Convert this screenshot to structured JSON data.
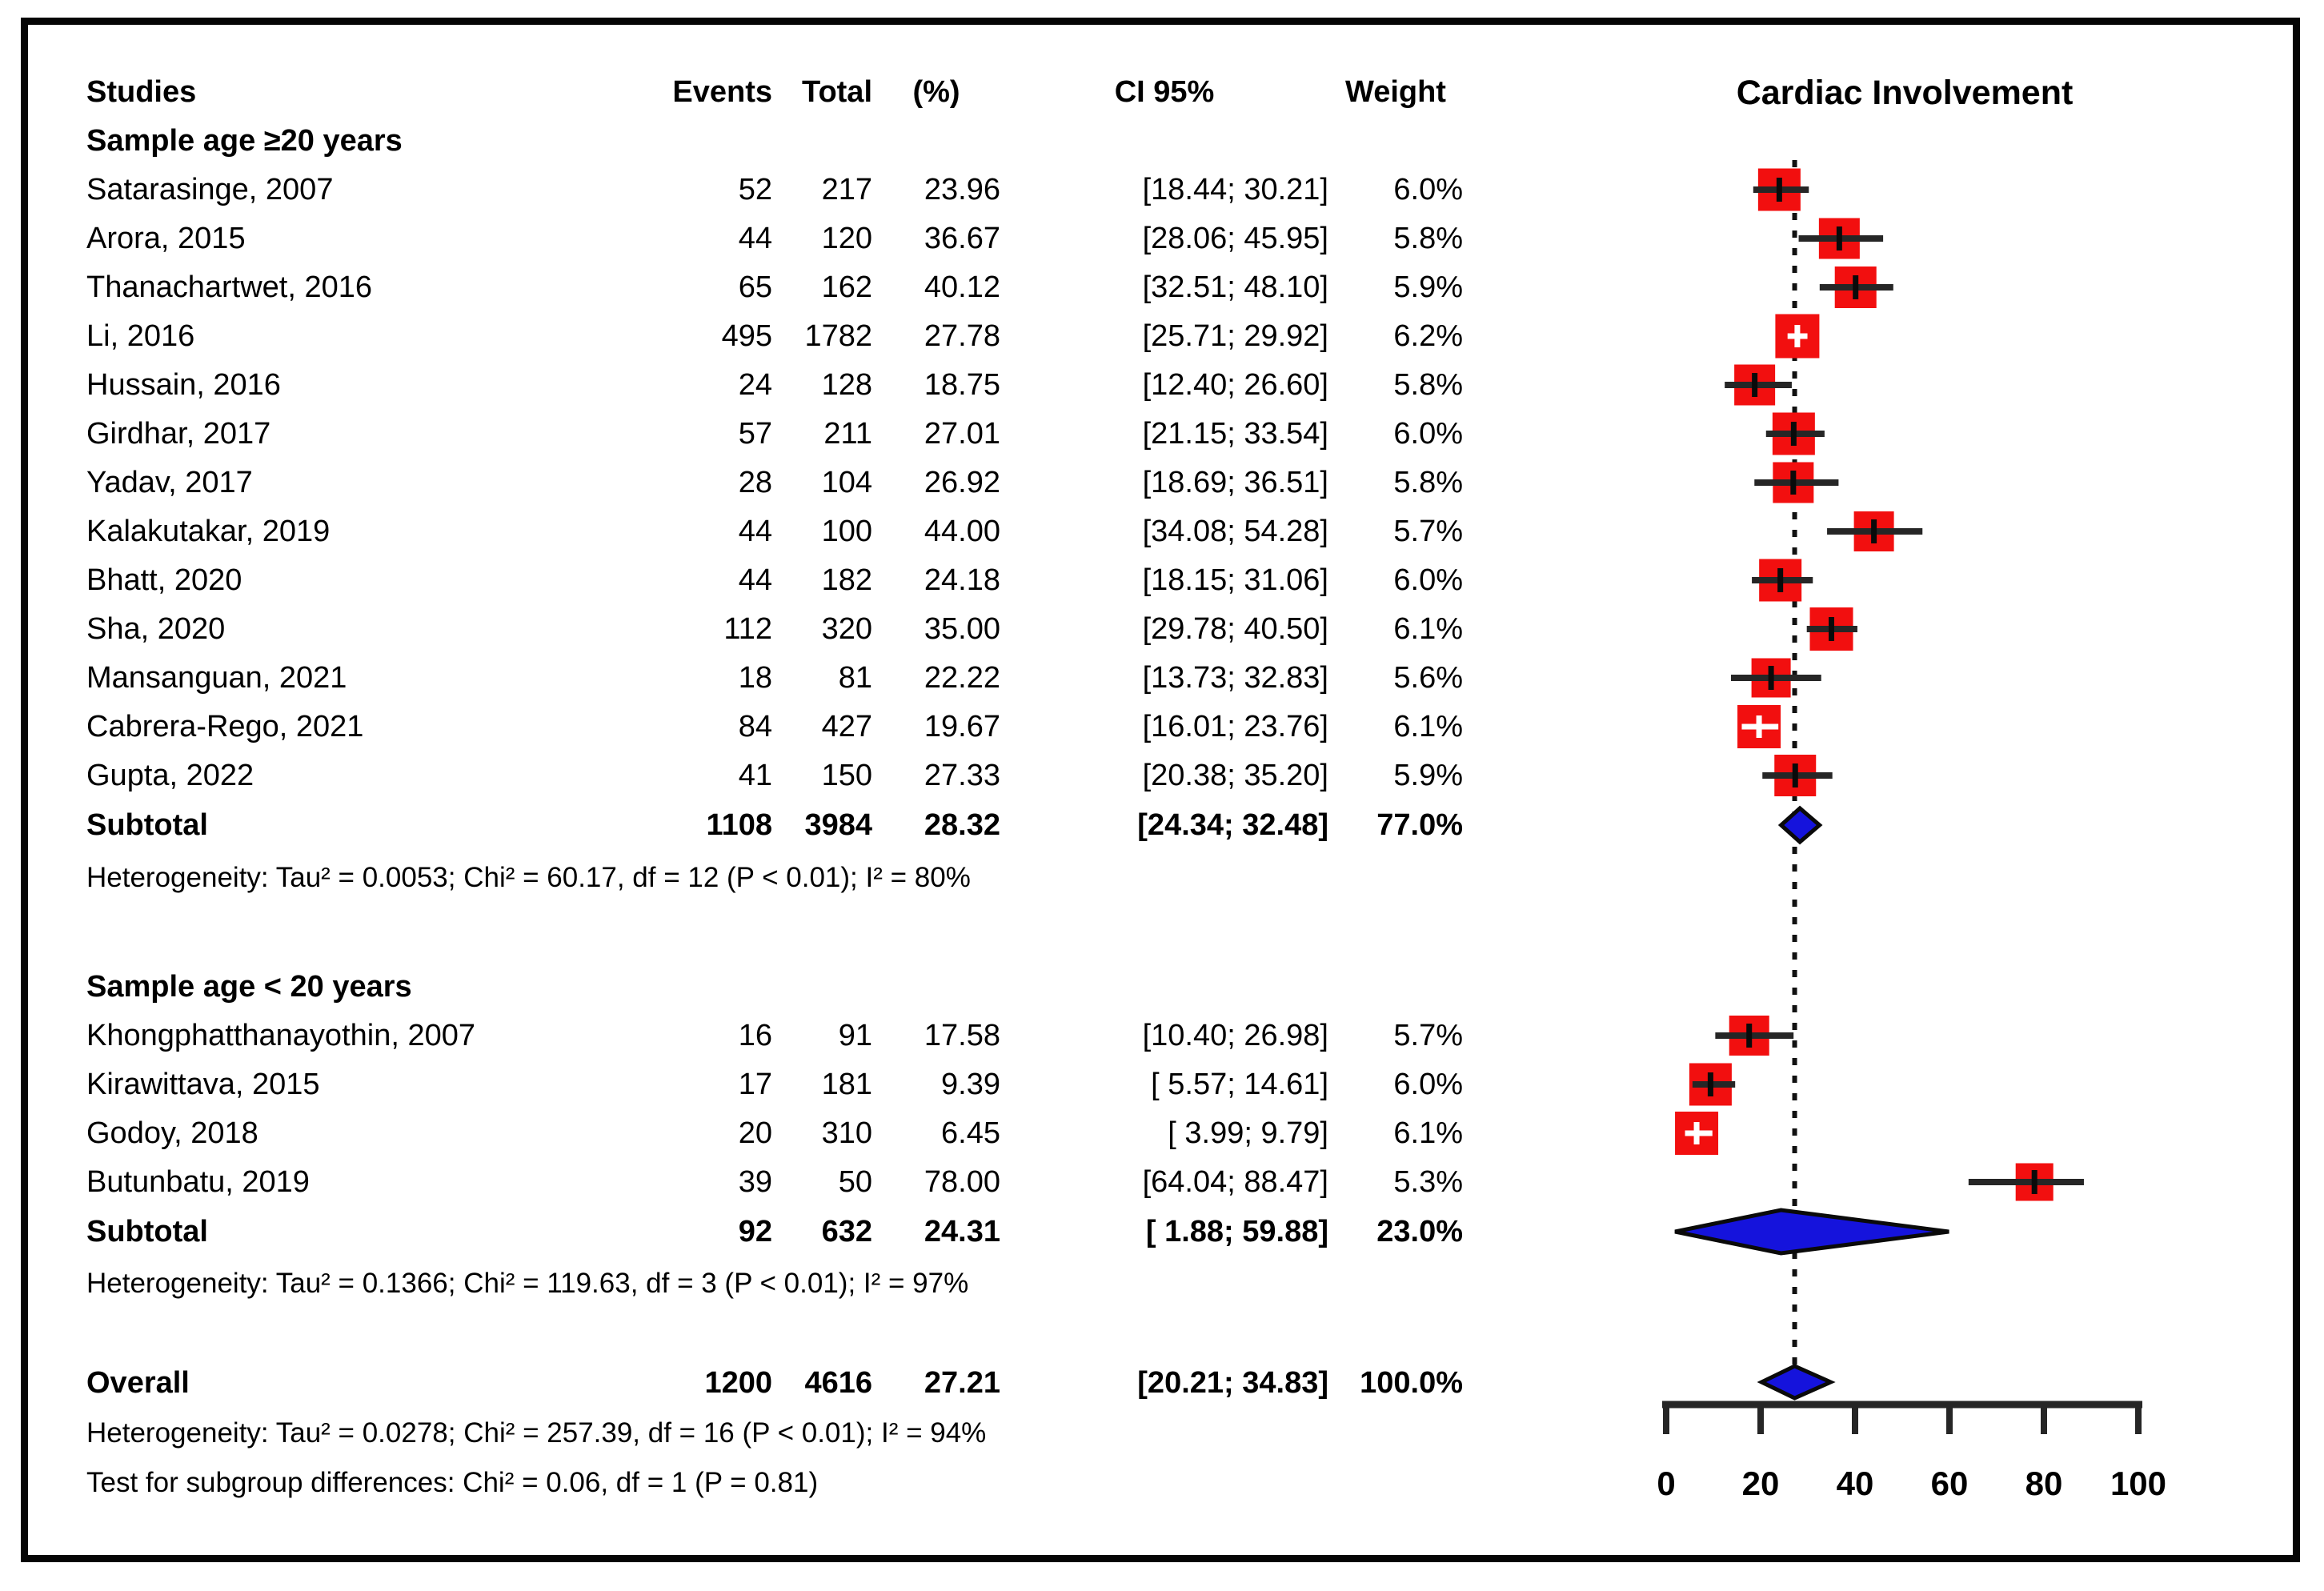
{
  "figure": {
    "background": "#ffffff",
    "frame_color": "#050505"
  },
  "table_headers": {
    "studies": "Studies",
    "events": "Events",
    "total": "Total",
    "pct": "(%)",
    "ci": "CI 95%",
    "weight": "Weight"
  },
  "chart_data": {
    "type": "forest",
    "title": "Cardiac Involvement",
    "xlabel": "",
    "xlim": [
      0,
      100
    ],
    "x_ticks": [
      0,
      20,
      40,
      60,
      80,
      100
    ],
    "reference_line": 27.21,
    "colors": {
      "square": "#f20f0f",
      "diamond": "#1513dc",
      "ci_line": "#262626",
      "axis": "#262626",
      "text": "#000000"
    },
    "groups": [
      {
        "label": "Sample age ≥20 years",
        "studies": [
          {
            "name": "Satarasinge, 2007",
            "events": "52",
            "total": "217",
            "pct": "23.96",
            "est": 23.96,
            "lo": 18.44,
            "hi": 30.21,
            "ci_text": "[18.44; 30.21]",
            "weight_text": "6.0%",
            "weight": 6.0
          },
          {
            "name": "Arora, 2015",
            "events": "44",
            "total": "120",
            "pct": "36.67",
            "est": 36.67,
            "lo": 28.06,
            "hi": 45.95,
            "ci_text": "[28.06; 45.95]",
            "weight_text": "5.8%",
            "weight": 5.8
          },
          {
            "name": "Thanachartwet, 2016",
            "events": "65",
            "total": "162",
            "pct": "40.12",
            "est": 40.12,
            "lo": 32.51,
            "hi": 48.1,
            "ci_text": "[32.51; 48.10]",
            "weight_text": "5.9%",
            "weight": 5.9
          },
          {
            "name": "Li, 2016",
            "events": "495",
            "total": "1782",
            "pct": "27.78",
            "est": 27.78,
            "lo": 25.71,
            "hi": 29.92,
            "ci_text": "[25.71; 29.92]",
            "weight_text": "6.2%",
            "weight": 6.2
          },
          {
            "name": "Hussain, 2016",
            "events": "24",
            "total": "128",
            "pct": "18.75",
            "est": 18.75,
            "lo": 12.4,
            "hi": 26.6,
            "ci_text": "[12.40; 26.60]",
            "weight_text": "5.8%",
            "weight": 5.8
          },
          {
            "name": "Girdhar, 2017",
            "events": "57",
            "total": "211",
            "pct": "27.01",
            "est": 27.01,
            "lo": 21.15,
            "hi": 33.54,
            "ci_text": "[21.15; 33.54]",
            "weight_text": "6.0%",
            "weight": 6.0
          },
          {
            "name": "Yadav, 2017",
            "events": "28",
            "total": "104",
            "pct": "26.92",
            "est": 26.92,
            "lo": 18.69,
            "hi": 36.51,
            "ci_text": "[18.69; 36.51]",
            "weight_text": "5.8%",
            "weight": 5.8
          },
          {
            "name": "Kalakutakar, 2019",
            "events": "44",
            "total": "100",
            "pct": "44.00",
            "est": 44.0,
            "lo": 34.08,
            "hi": 54.28,
            "ci_text": "[34.08; 54.28]",
            "weight_text": "5.7%",
            "weight": 5.7
          },
          {
            "name": "Bhatt, 2020",
            "events": "44",
            "total": "182",
            "pct": "24.18",
            "est": 24.18,
            "lo": 18.15,
            "hi": 31.06,
            "ci_text": "[18.15; 31.06]",
            "weight_text": "6.0%",
            "weight": 6.0
          },
          {
            "name": "Sha, 2020",
            "events": "112",
            "total": "320",
            "pct": "35.00",
            "est": 35.0,
            "lo": 29.78,
            "hi": 40.5,
            "ci_text": "[29.78; 40.50]",
            "weight_text": "6.1%",
            "weight": 6.1
          },
          {
            "name": "Mansanguan, 2021",
            "events": "18",
            "total": "81",
            "pct": "22.22",
            "est": 22.22,
            "lo": 13.73,
            "hi": 32.83,
            "ci_text": "[13.73; 32.83]",
            "weight_text": "5.6%",
            "weight": 5.6
          },
          {
            "name": "Cabrera-Rego, 2021",
            "events": "84",
            "total": "427",
            "pct": "19.67",
            "est": 19.67,
            "lo": 16.01,
            "hi": 23.76,
            "ci_text": "[16.01; 23.76]",
            "weight_text": "6.1%",
            "weight": 6.1
          },
          {
            "name": "Gupta, 2022",
            "events": "41",
            "total": "150",
            "pct": "27.33",
            "est": 27.33,
            "lo": 20.38,
            "hi": 35.2,
            "ci_text": "[20.38; 35.20]",
            "weight_text": "5.9%",
            "weight": 5.9
          }
        ],
        "subtotal": {
          "name": "Subtotal",
          "events": "1108",
          "total": "3984",
          "pct": "28.32",
          "est": 28.32,
          "lo": 24.34,
          "hi": 32.48,
          "ci_text": "[24.34; 32.48]",
          "weight_text": "77.0%"
        },
        "heterogeneity": "Heterogeneity: Tau² = 0.0053; Chi² = 60.17, df = 12 (P < 0.01); I² = 80%"
      },
      {
        "label": "Sample age < 20 years",
        "studies": [
          {
            "name": "Khongphatthanayothin, 2007",
            "events": "16",
            "total": "91",
            "pct": "17.58",
            "est": 17.58,
            "lo": 10.4,
            "hi": 26.98,
            "ci_text": "[10.40; 26.98]",
            "weight_text": "5.7%",
            "weight": 5.7
          },
          {
            "name": "Kirawittava, 2015",
            "events": "17",
            "total": "181",
            "pct": "9.39",
            "est": 9.39,
            "lo": 5.57,
            "hi": 14.61,
            "ci_text": "[ 5.57; 14.61]",
            "weight_text": "6.0%",
            "weight": 6.0
          },
          {
            "name": "Godoy, 2018",
            "events": "20",
            "total": "310",
            "pct": "6.45",
            "est": 6.45,
            "lo": 3.99,
            "hi": 9.79,
            "ci_text": "[ 3.99; 9.79]",
            "weight_text": "6.1%",
            "weight": 6.1
          },
          {
            "name": "Butunbatu, 2019",
            "events": "39",
            "total": "50",
            "pct": "78.00",
            "est": 78.0,
            "lo": 64.04,
            "hi": 88.47,
            "ci_text": "[64.04; 88.47]",
            "weight_text": "5.3%",
            "weight": 5.3
          }
        ],
        "subtotal": {
          "name": "Subtotal",
          "events": "92",
          "total": "632",
          "pct": "24.31",
          "est": 24.31,
          "lo": 1.88,
          "hi": 59.88,
          "ci_text": "[ 1.88; 59.88]",
          "weight_text": "23.0%"
        },
        "heterogeneity": "Heterogeneity: Tau² = 0.1366; Chi² = 119.63, df = 3 (P < 0.01); I² = 97%"
      }
    ],
    "overall": {
      "name": "Overall",
      "events": "1200",
      "total": "4616",
      "pct": "27.21",
      "est": 27.21,
      "lo": 20.21,
      "hi": 34.83,
      "ci_text": "[20.21; 34.83]",
      "weight_text": "100.0%"
    },
    "overall_heterogeneity": "Heterogeneity: Tau² = 0.0278; Chi² = 257.39, df = 16 (P < 0.01); I² = 94%",
    "subgroup_test": "Test for subgroup differences: Chi² = 0.06, df = 1 (P = 0.81)"
  }
}
